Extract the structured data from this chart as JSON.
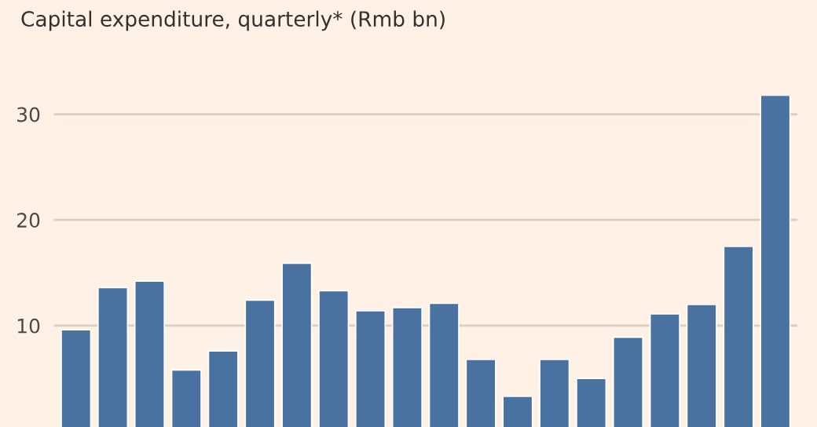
{
  "chart_data": {
    "type": "bar",
    "title": "Capital expenditure, quarterly* (Rmb bn)",
    "categories": [
      null,
      null,
      null,
      null,
      null,
      null,
      null,
      null,
      null,
      null,
      null,
      null,
      null,
      null,
      null,
      null,
      null,
      null,
      null,
      null
    ],
    "values": [
      9.6,
      13.6,
      14.2,
      5.8,
      7.6,
      12.4,
      15.9,
      13.3,
      11.4,
      11.7,
      12.1,
      6.8,
      3.3,
      6.8,
      5.0,
      8.9,
      11.1,
      12.0,
      17.5,
      31.8
    ],
    "color": "#4a72a0",
    "ylim": [
      0.4,
      31.8
    ],
    "yticks": [
      10,
      20,
      30
    ],
    "grid": "y",
    "tick_labels": "y"
  }
}
